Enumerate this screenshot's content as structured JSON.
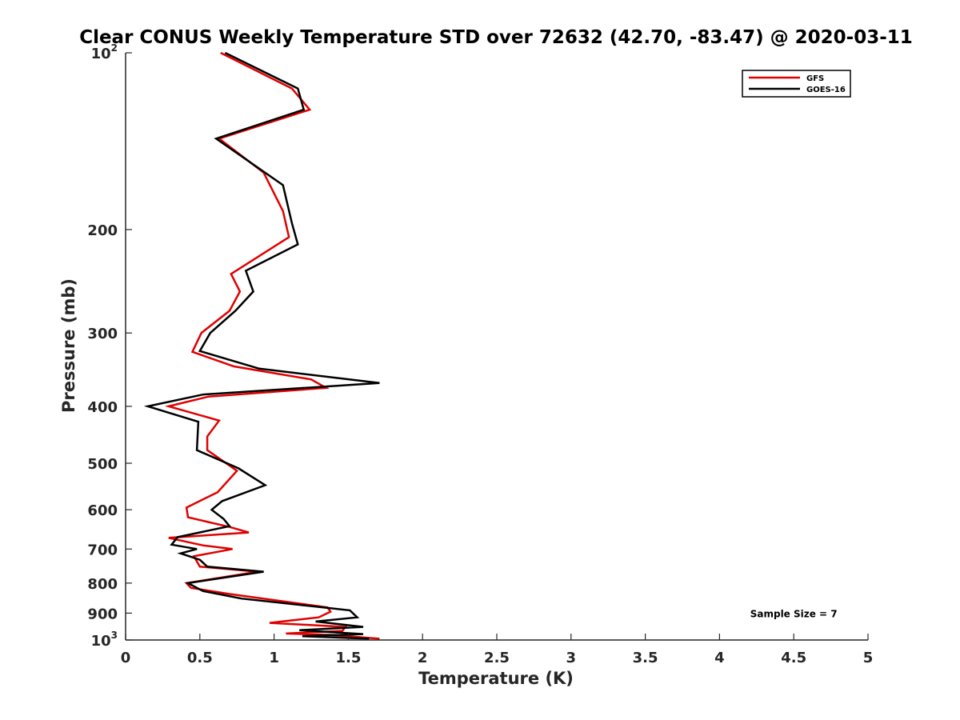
{
  "chart_data": {
    "type": "line",
    "title": "Clear CONUS Weekly Temperature STD over 72632 (42.70, -83.47) @ 2020-03-11",
    "xlabel": "Temperature (K)",
    "ylabel": "Pressure (mb)",
    "xlim": [
      0,
      5
    ],
    "ylim": [
      100,
      1000
    ],
    "yscale": "log",
    "yreversed": true,
    "grid": false,
    "legend_position": "top-right",
    "x_ticks": [
      {
        "value": 0,
        "label": "0"
      },
      {
        "value": 0.5,
        "label": "0.5"
      },
      {
        "value": 1,
        "label": "1"
      },
      {
        "value": 1.5,
        "label": "1.5"
      },
      {
        "value": 2,
        "label": "2"
      },
      {
        "value": 2.5,
        "label": "2.5"
      },
      {
        "value": 3,
        "label": "3"
      },
      {
        "value": 3.5,
        "label": "3.5"
      },
      {
        "value": 4,
        "label": "4"
      },
      {
        "value": 4.5,
        "label": "4.5"
      },
      {
        "value": 5,
        "label": "5"
      }
    ],
    "y_ticks": [
      {
        "value": 100,
        "base": "10",
        "sup": "2"
      },
      {
        "value": 200,
        "label": "200"
      },
      {
        "value": 300,
        "label": "300"
      },
      {
        "value": 400,
        "label": "400"
      },
      {
        "value": 500,
        "label": "500"
      },
      {
        "value": 600,
        "label": "600"
      },
      {
        "value": 700,
        "label": "700"
      },
      {
        "value": 800,
        "label": "800"
      },
      {
        "value": 900,
        "label": "900"
      },
      {
        "value": 1000,
        "base": "10",
        "sup": "3"
      }
    ],
    "series": [
      {
        "name": "GFS",
        "color": "#e00000",
        "points": [
          [
            0.64,
            100
          ],
          [
            1.12,
            115
          ],
          [
            1.24,
            125
          ],
          [
            0.63,
            140
          ],
          [
            0.93,
            160
          ],
          [
            1.06,
            186
          ],
          [
            1.1,
            206
          ],
          [
            0.71,
            238
          ],
          [
            0.77,
            255
          ],
          [
            0.7,
            275
          ],
          [
            0.51,
            300
          ],
          [
            0.45,
            323
          ],
          [
            0.73,
            342
          ],
          [
            1.25,
            360
          ],
          [
            1.35,
            372
          ],
          [
            0.56,
            385
          ],
          [
            0.29,
            400
          ],
          [
            0.63,
            423
          ],
          [
            0.55,
            450
          ],
          [
            0.55,
            475
          ],
          [
            0.75,
            515
          ],
          [
            0.62,
            560
          ],
          [
            0.41,
            595
          ],
          [
            0.42,
            618
          ],
          [
            0.7,
            642
          ],
          [
            0.83,
            656
          ],
          [
            0.29,
            670
          ],
          [
            0.52,
            690
          ],
          [
            0.72,
            700
          ],
          [
            0.46,
            720
          ],
          [
            0.5,
            750
          ],
          [
            0.89,
            765
          ],
          [
            0.41,
            800
          ],
          [
            0.44,
            815
          ],
          [
            0.7,
            835
          ],
          [
            1.36,
            880
          ],
          [
            1.38,
            895
          ],
          [
            1.3,
            915
          ],
          [
            0.97,
            935
          ],
          [
            1.48,
            950
          ],
          [
            1.46,
            965
          ],
          [
            1.08,
            975
          ],
          [
            1.38,
            980
          ],
          [
            1.71,
            995
          ]
        ]
      },
      {
        "name": "GOES-16",
        "color": "#000000",
        "points": [
          [
            0.67,
            100
          ],
          [
            1.16,
            115
          ],
          [
            1.2,
            125
          ],
          [
            0.61,
            140
          ],
          [
            1.06,
            168
          ],
          [
            1.12,
            195
          ],
          [
            1.16,
            212
          ],
          [
            0.81,
            235
          ],
          [
            0.86,
            255
          ],
          [
            0.74,
            275
          ],
          [
            0.57,
            300
          ],
          [
            0.5,
            322
          ],
          [
            0.9,
            345
          ],
          [
            1.71,
            365
          ],
          [
            0.52,
            382
          ],
          [
            0.15,
            400
          ],
          [
            0.49,
            425
          ],
          [
            0.48,
            475
          ],
          [
            0.76,
            510
          ],
          [
            0.94,
            545
          ],
          [
            0.65,
            580
          ],
          [
            0.58,
            600
          ],
          [
            0.66,
            622
          ],
          [
            0.7,
            640
          ],
          [
            0.35,
            668
          ],
          [
            0.31,
            688
          ],
          [
            0.48,
            700
          ],
          [
            0.37,
            712
          ],
          [
            0.5,
            730
          ],
          [
            0.55,
            750
          ],
          [
            0.93,
            765
          ],
          [
            0.42,
            800
          ],
          [
            0.52,
            825
          ],
          [
            0.78,
            850
          ],
          [
            1.51,
            890
          ],
          [
            1.56,
            915
          ],
          [
            1.28,
            930
          ],
          [
            1.6,
            950
          ],
          [
            1.17,
            962
          ],
          [
            1.6,
            977
          ],
          [
            1.19,
            985
          ],
          [
            1.64,
            995
          ]
        ]
      }
    ],
    "annotations": [
      {
        "text": "Sample Size = 7",
        "x": 4.5,
        "y": 900
      }
    ]
  }
}
